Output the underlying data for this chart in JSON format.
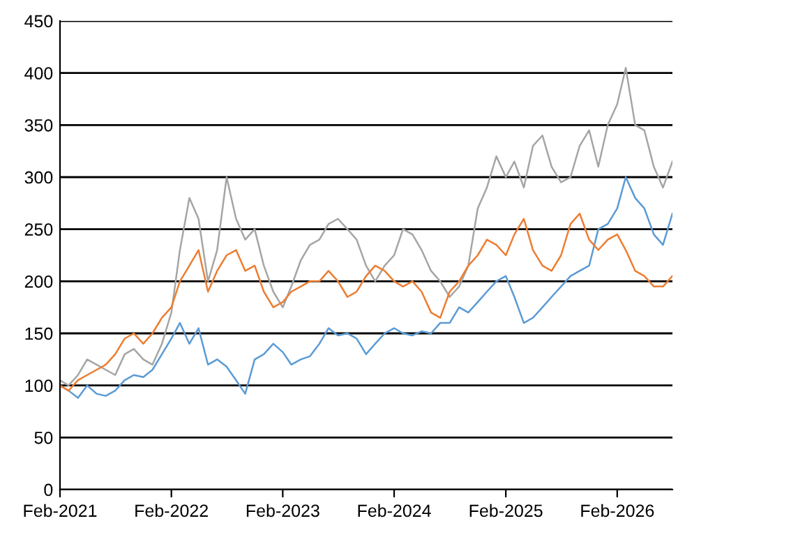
{
  "chart_data": {
    "type": "line",
    "x": [
      "2021-02",
      "2021-03",
      "2021-04",
      "2021-05",
      "2021-06",
      "2021-07",
      "2021-08",
      "2021-09",
      "2021-10",
      "2021-11",
      "2021-12",
      "2022-01",
      "2022-02",
      "2022-03",
      "2022-04",
      "2022-05",
      "2022-06",
      "2022-07",
      "2022-08",
      "2022-09",
      "2022-10",
      "2022-11",
      "2022-12",
      "2023-01",
      "2023-02",
      "2023-03",
      "2023-04",
      "2023-05",
      "2023-06",
      "2023-07",
      "2023-08",
      "2023-09",
      "2023-10",
      "2023-11",
      "2023-12",
      "2024-01",
      "2024-02",
      "2024-03",
      "2024-04",
      "2024-05",
      "2024-06",
      "2024-07",
      "2024-08",
      "2024-09",
      "2024-10",
      "2024-11",
      "2024-12",
      "2025-01",
      "2025-02",
      "2025-03",
      "2025-04",
      "2025-05",
      "2025-06",
      "2025-07",
      "2025-08",
      "2025-09",
      "2025-10",
      "2025-11",
      "2025-12",
      "2026-01",
      "2026-02",
      "2026-03",
      "2026-04",
      "2026-05",
      "2026-06",
      "2026-07",
      "2026-08"
    ],
    "series": [
      {
        "color": "#5b9bd5",
        "values": [
          100,
          95,
          88,
          100,
          92,
          90,
          95,
          105,
          110,
          108,
          115,
          130,
          145,
          160,
          140,
          155,
          120,
          125,
          118,
          105,
          92,
          125,
          130,
          140,
          132,
          120,
          125,
          128,
          140,
          155,
          148,
          150,
          145,
          130,
          140,
          150,
          155,
          150,
          148,
          152,
          150,
          160,
          160,
          175,
          170,
          180,
          190,
          200,
          205,
          185,
          160,
          165,
          175,
          185,
          195,
          205,
          210,
          215,
          250,
          255,
          270,
          300,
          280,
          270,
          245,
          235,
          265
        ]
      },
      {
        "color": "#a5a5a5",
        "values": [
          105,
          100,
          110,
          125,
          120,
          115,
          110,
          130,
          135,
          125,
          120,
          140,
          170,
          230,
          280,
          260,
          200,
          230,
          300,
          260,
          240,
          250,
          215,
          190,
          175,
          195,
          220,
          235,
          240,
          255,
          260,
          250,
          240,
          215,
          200,
          215,
          225,
          250,
          245,
          230,
          210,
          200,
          185,
          195,
          215,
          270,
          290,
          320,
          300,
          315,
          290,
          330,
          340,
          310,
          295,
          300,
          330,
          345,
          310,
          350,
          370,
          405,
          350,
          345,
          310,
          290,
          315
        ]
      },
      {
        "color": "#ed7d31",
        "values": [
          100,
          95,
          105,
          110,
          115,
          120,
          130,
          145,
          150,
          140,
          150,
          165,
          175,
          200,
          215,
          230,
          190,
          210,
          225,
          230,
          210,
          215,
          190,
          175,
          180,
          190,
          195,
          200,
          200,
          210,
          200,
          185,
          190,
          205,
          215,
          210,
          200,
          195,
          200,
          190,
          170,
          165,
          190,
          200,
          215,
          225,
          240,
          235,
          225,
          245,
          260,
          230,
          215,
          210,
          225,
          255,
          265,
          240,
          230,
          240,
          245,
          230,
          210,
          205,
          195,
          195,
          205
        ]
      }
    ],
    "xlim": [
      "2021-02",
      "2026-08"
    ],
    "xticks": [
      {
        "value": "2021-02",
        "label": "Feb-2021"
      },
      {
        "value": "2022-02",
        "label": "Feb-2022"
      },
      {
        "value": "2023-02",
        "label": "Feb-2023"
      },
      {
        "value": "2024-02",
        "label": "Feb-2024"
      },
      {
        "value": "2025-02",
        "label": "Feb-2025"
      },
      {
        "value": "2026-02",
        "label": "Feb-2026"
      }
    ],
    "ylim": [
      0,
      450
    ],
    "yticks": [
      0,
      50,
      100,
      150,
      200,
      250,
      300,
      350,
      400,
      450
    ],
    "grid": "y",
    "marker": "none",
    "line_style": "solid"
  }
}
